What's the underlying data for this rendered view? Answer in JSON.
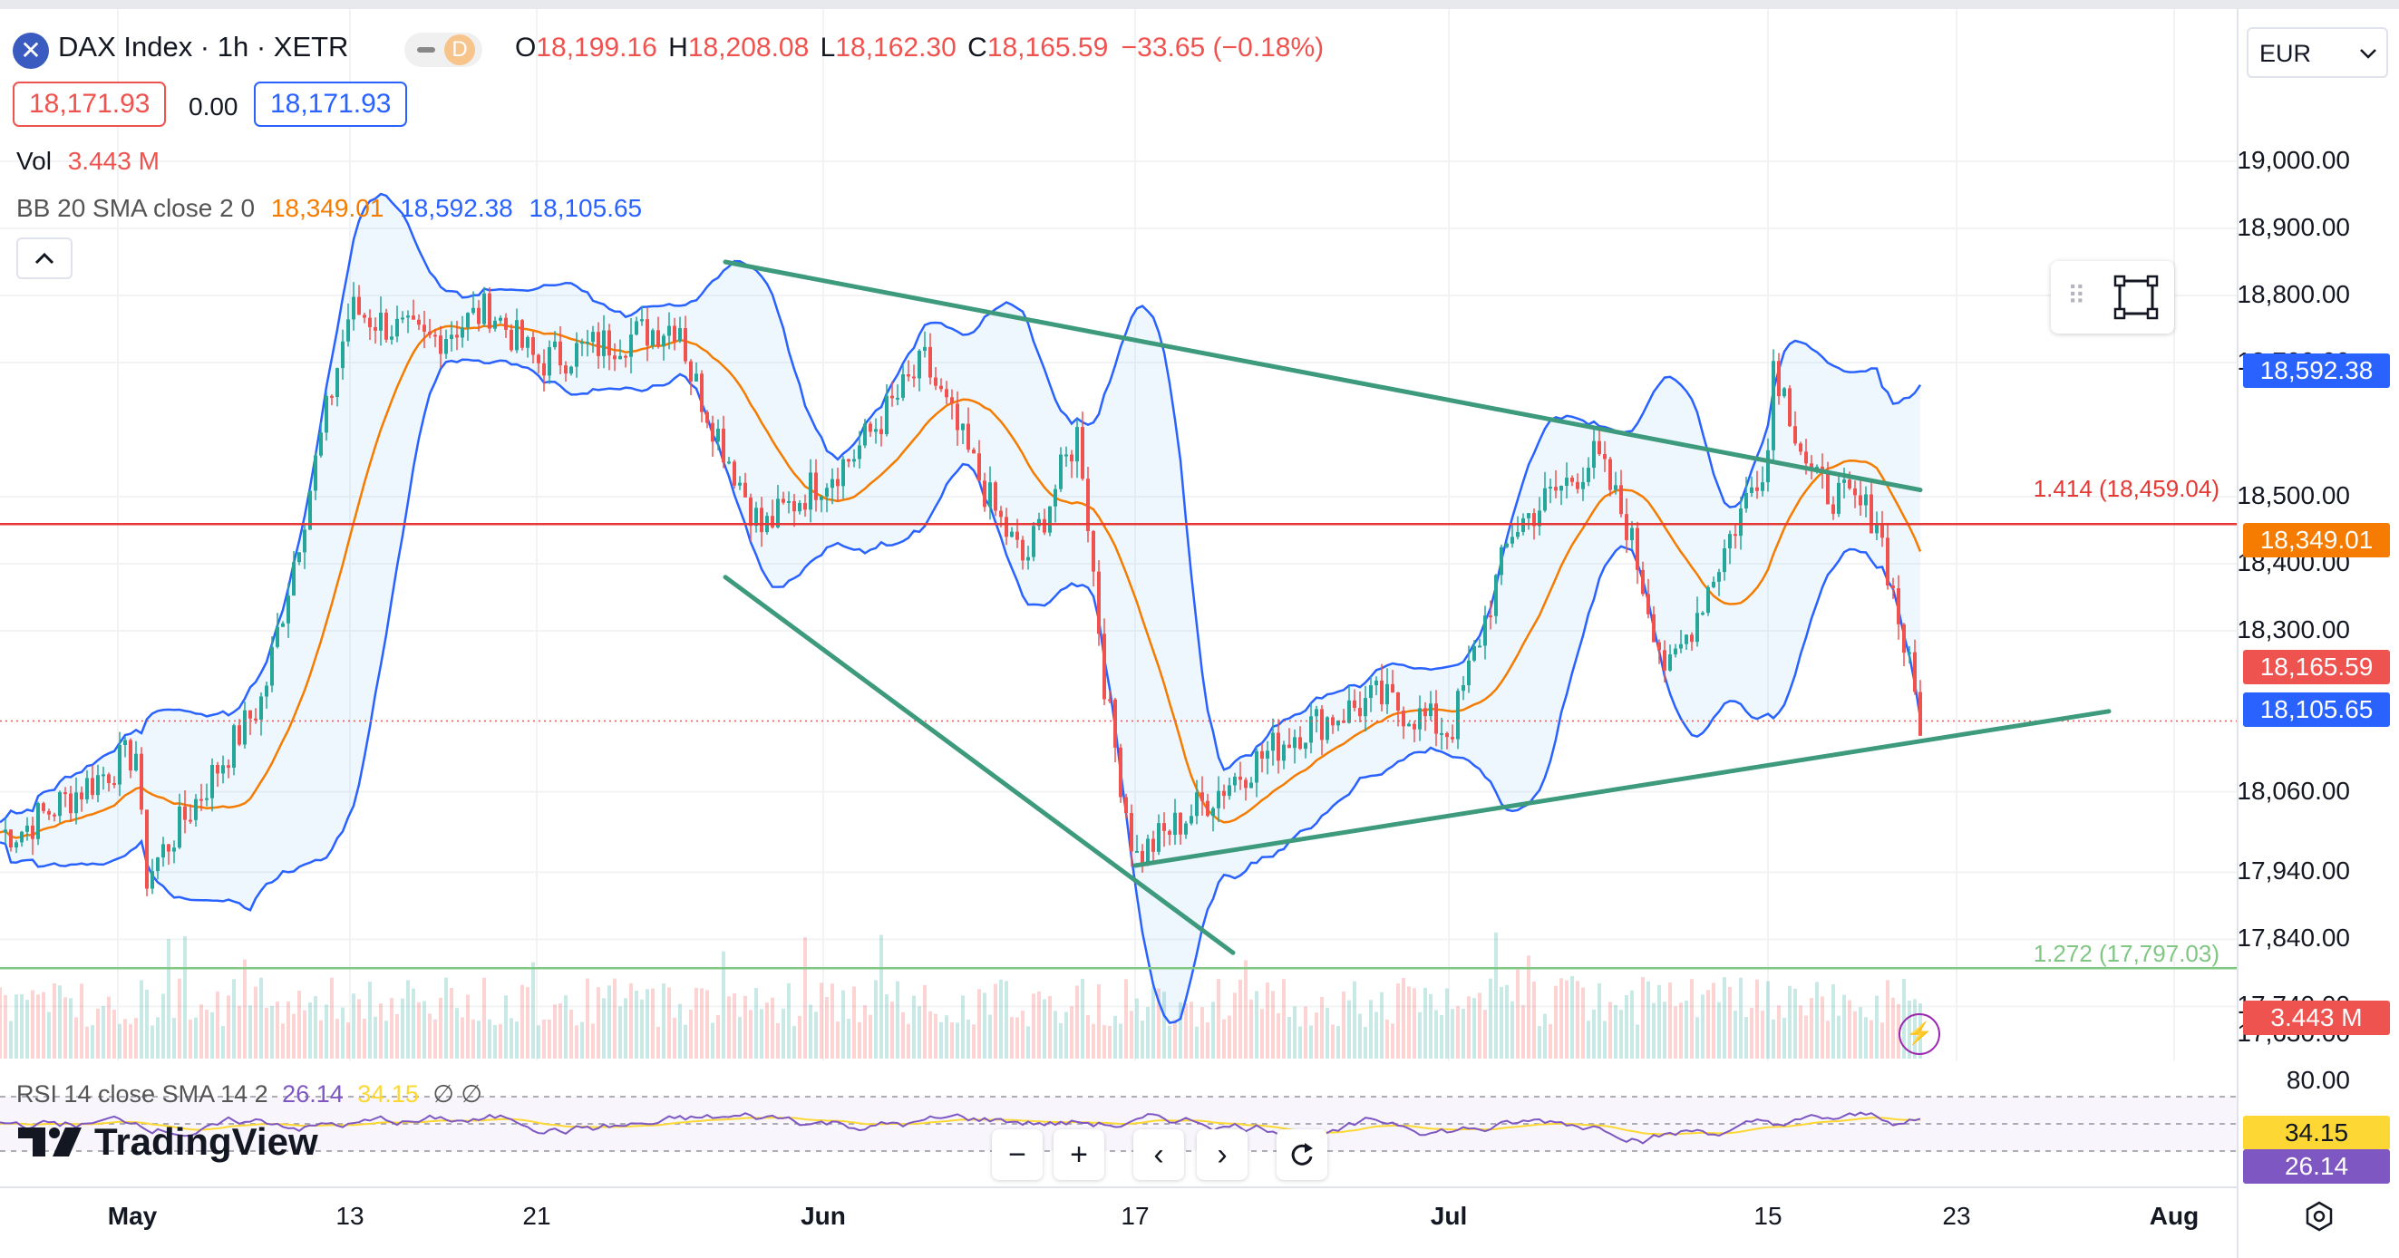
{
  "header": {
    "symbol": "DAX Index · 1h · XETR",
    "session_badge": "D",
    "o_label": "O",
    "o_value": "18,199.16",
    "h_label": "H",
    "h_value": "18,208.08",
    "l_label": "L",
    "l_value": "18,162.30",
    "c_label": "C",
    "c_value": "18,165.59",
    "change": "−33.65 (−0.18%)",
    "sell_price": "18,171.93",
    "spread": "0.00",
    "buy_price": "18,171.93",
    "currency": "EUR"
  },
  "indicators": {
    "vol_label": "Vol",
    "vol_value": "3.443 M",
    "bb_label": "BB 20 SMA close 2 0",
    "bb_basis": "18,349.01",
    "bb_upper": "18,592.38",
    "bb_lower": "18,105.65",
    "rsi_label": "RSI 14 close SMA 14 2",
    "rsi_value": "26.14",
    "rsi_sma": "34.15",
    "rsi_extra": "∅ ∅"
  },
  "logo": {
    "text": "TradingView"
  },
  "colors": {
    "up": "#26a69a",
    "down": "#ef5350",
    "bb_basis": "#f57c00",
    "bb_band": "#2962ff",
    "trendline": "#3d9a7c",
    "fib_1414": "#e53935",
    "fib_1272": "#81c784",
    "rsi": "#7e57c2",
    "rsi_sma": "#fdd835"
  },
  "price_axis": {
    "labels": [
      "19,000.00",
      "18,900.00",
      "18,800.00",
      "18,700.00",
      "18,500.00",
      "18,400.00",
      "18,300.00",
      "18,060.00",
      "17,940.00",
      "17,840.00",
      "17,740.00"
    ],
    "obscured_label": "17,630.00",
    "rsi_labels": [
      "80.00"
    ]
  },
  "price_tags": {
    "bb_upper": "18,592.38",
    "bb_basis": "18,349.01",
    "last": "18,165.59",
    "bb_lower": "18,105.65",
    "volume": "3.443 M",
    "rsi_sma": "34.15",
    "rsi": "26.14"
  },
  "fib_levels": [
    {
      "label": "1.414 (18,459.04)",
      "price": 18459.04,
      "color": "#e53935"
    },
    {
      "label": "1.272 (17,797.03)",
      "price": 17797.03,
      "color": "#81c784"
    }
  ],
  "time_axis": [
    "May",
    "13",
    "21",
    "Jun",
    "17",
    "Jul",
    "15",
    "23",
    "Aug"
  ],
  "toolbar": {
    "zoom_out": "−",
    "zoom_in": "+",
    "scroll_left": "‹",
    "scroll_right": "›"
  },
  "chart_data": {
    "type": "candlestick",
    "title": "DAX Index · 1h · XETR",
    "currency": "EUR",
    "ylim": [
      17740,
      19000
    ],
    "x_ticks": [
      "May",
      "13",
      "21",
      "Jun",
      "17",
      "Jul",
      "15",
      "23",
      "Aug"
    ],
    "y_ticks": [
      19000,
      18900,
      18800,
      18700,
      18500,
      18400,
      18300,
      18060,
      17940,
      17840,
      17740
    ],
    "close_path": {
      "x": [
        "Apr 29",
        "May 2",
        "May 6",
        "May 9",
        "May 13",
        "May 15",
        "May 17",
        "May 21",
        "May 24",
        "May 27",
        "May 29",
        "May 31",
        "Jun 3",
        "Jun 5",
        "Jun 7",
        "Jun 11",
        "Jun 13",
        "Jun 14",
        "Jun 17",
        "Jun 19",
        "Jun 21",
        "Jun 25",
        "Jun 28",
        "Jul 2",
        "Jul 5",
        "Jul 8",
        "Jul 10",
        "Jul 12",
        "Jul 15",
        "Jul 17",
        "Jul 19",
        "Jul 22"
      ],
      "y": [
        18000,
        18120,
        17930,
        18200,
        18780,
        18730,
        18780,
        18700,
        18760,
        18690,
        18450,
        18520,
        18560,
        18700,
        18470,
        18400,
        18600,
        18200,
        17960,
        18080,
        18150,
        18200,
        18150,
        18450,
        18560,
        18460,
        18230,
        18570,
        18730,
        18520,
        18470,
        18165
      ]
    },
    "series": [
      {
        "name": "BB basis",
        "values_last": 18349.01
      },
      {
        "name": "BB upper",
        "values_last": 18592.38
      },
      {
        "name": "BB lower",
        "values_last": 18105.65
      }
    ],
    "trendlines": [
      {
        "from": [
          "May 28",
          18850
        ],
        "to": [
          "Jul 22",
          18510
        ]
      },
      {
        "from": [
          "May 28",
          18380
        ],
        "to": [
          "Jun 19",
          17820
        ]
      },
      {
        "from": [
          "Jun 17",
          17950
        ],
        "to": [
          "Jul 27",
          18180
        ]
      }
    ],
    "last_price": 18165.59,
    "volume_last": "3.443 M",
    "rsi_last": 26.14,
    "rsi_sma_last": 34.15
  }
}
